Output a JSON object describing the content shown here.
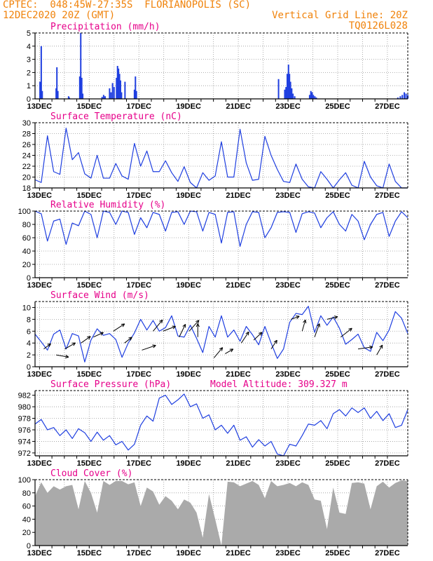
{
  "header": {
    "line1_left": "CPTEC:  048:45W-27:35S  FLORIANOPOLIS (SC)",
    "line2_left": "12DEC2020 20Z (GMT)",
    "line2_right": "Vertical Grid Line: 20Z",
    "line3_right": "TQ0126L028"
  },
  "x_axis_labels": [
    "13DEC",
    "15DEC",
    "17DEC",
    "19DEC",
    "21DEC",
    "23DEC",
    "25DEC",
    "27DEC"
  ],
  "chart_data": [
    {
      "type": "bar",
      "title": "Precipitation (mm/h)",
      "ylim": [
        0,
        5
      ],
      "yticks": [
        0,
        1,
        2,
        3,
        4,
        5
      ],
      "color": "#1f3fe0",
      "x_unit": "days since 12DEC 20Z",
      "points": [
        [
          0.2,
          1.3
        ],
        [
          0.25,
          4.0
        ],
        [
          0.29,
          0.6
        ],
        [
          0.85,
          0.8
        ],
        [
          0.88,
          2.4
        ],
        [
          0.92,
          0.6
        ],
        [
          1.35,
          0.2
        ],
        [
          1.38,
          0.1
        ],
        [
          1.8,
          1.7
        ],
        [
          1.84,
          5.0
        ],
        [
          1.88,
          1.6
        ],
        [
          1.92,
          0.4
        ],
        [
          2.7,
          0.15
        ],
        [
          2.76,
          0.3
        ],
        [
          2.82,
          0.2
        ],
        [
          3.0,
          0.8
        ],
        [
          3.06,
          0.5
        ],
        [
          3.12,
          1.2
        ],
        [
          3.18,
          0.9
        ],
        [
          3.28,
          1.6
        ],
        [
          3.32,
          2.5
        ],
        [
          3.36,
          2.3
        ],
        [
          3.4,
          1.9
        ],
        [
          3.44,
          1.4
        ],
        [
          3.48,
          0.5
        ],
        [
          3.62,
          1.3
        ],
        [
          4.0,
          0.7
        ],
        [
          4.04,
          1.7
        ],
        [
          4.08,
          0.6
        ],
        [
          9.8,
          1.5
        ],
        [
          10.05,
          0.7
        ],
        [
          10.1,
          0.9
        ],
        [
          10.15,
          1.9
        ],
        [
          10.2,
          2.6
        ],
        [
          10.24,
          1.9
        ],
        [
          10.28,
          1.3
        ],
        [
          10.33,
          0.8
        ],
        [
          10.38,
          0.4
        ],
        [
          10.45,
          0.2
        ],
        [
          11.05,
          0.3
        ],
        [
          11.1,
          0.6
        ],
        [
          11.15,
          0.5
        ],
        [
          11.2,
          0.3
        ],
        [
          11.26,
          0.2
        ],
        [
          11.32,
          0.1
        ],
        [
          14.6,
          0.1
        ],
        [
          14.7,
          0.2
        ],
        [
          14.78,
          0.3
        ],
        [
          14.86,
          0.5
        ],
        [
          14.93,
          0.4
        ],
        [
          15.0,
          0.3
        ]
      ]
    },
    {
      "type": "line",
      "title": "Surface Temperature (nC)",
      "ylim": [
        18,
        30
      ],
      "yticks": [
        18,
        20,
        22,
        24,
        26,
        28,
        30
      ],
      "color": "#1f3fe0",
      "x": [
        0,
        0.25,
        0.5,
        0.75,
        1,
        1.25,
        1.5,
        1.75,
        2,
        2.25,
        2.5,
        2.75,
        3,
        3.25,
        3.5,
        3.75,
        4,
        4.25,
        4.5,
        4.75,
        5,
        5.25,
        5.5,
        5.75,
        6,
        6.25,
        6.5,
        6.75,
        7,
        7.25,
        7.5,
        7.75,
        8,
        8.25,
        8.5,
        8.75,
        9,
        9.25,
        9.5,
        9.75,
        10,
        10.25,
        10.5,
        10.75,
        11,
        11.25,
        11.5,
        11.75,
        12,
        12.25,
        12.5,
        12.75,
        13,
        13.25,
        13.5,
        13.75,
        14,
        14.25,
        14.5,
        14.75,
        15
      ],
      "values": [
        19.5,
        19.0,
        27.6,
        21.0,
        20.5,
        29.0,
        23.2,
        24.5,
        20.6,
        19.8,
        24.0,
        19.8,
        19.8,
        22.5,
        20.2,
        19.6,
        26.2,
        22.0,
        24.8,
        21.0,
        21.0,
        23.0,
        20.8,
        19.2,
        21.9,
        19.0,
        18.0,
        20.8,
        19.4,
        20.2,
        26.5,
        20.0,
        20.0,
        28.8,
        22.6,
        19.4,
        19.6,
        27.5,
        24.0,
        21.4,
        19.2,
        19.0,
        22.4,
        19.6,
        18.2,
        18.0,
        21.0,
        19.6,
        18.0,
        19.5,
        20.8,
        18.5,
        18.0,
        22.9,
        20.0,
        18.4,
        18.0,
        22.4,
        19.2,
        18.0,
        18.0
      ]
    },
    {
      "type": "line",
      "title": "Relative Humidity (%)",
      "ylim": [
        0,
        100
      ],
      "yticks": [
        0,
        20,
        40,
        60,
        80,
        100
      ],
      "color": "#1f3fe0",
      "x": [
        0,
        0.25,
        0.5,
        0.75,
        1,
        1.25,
        1.5,
        1.75,
        2,
        2.25,
        2.5,
        2.75,
        3,
        3.25,
        3.5,
        3.75,
        4,
        4.25,
        4.5,
        4.75,
        5,
        5.25,
        5.5,
        5.75,
        6,
        6.25,
        6.5,
        6.75,
        7,
        7.25,
        7.5,
        7.75,
        8,
        8.25,
        8.5,
        8.75,
        9,
        9.25,
        9.5,
        9.75,
        10,
        10.25,
        10.5,
        10.75,
        11,
        11.25,
        11.5,
        11.75,
        12,
        12.25,
        12.5,
        12.75,
        13,
        13.25,
        13.5,
        13.75,
        14,
        14.25,
        14.5,
        14.75,
        15
      ],
      "values": [
        100,
        96,
        55,
        85,
        88,
        50,
        82,
        78,
        100,
        95,
        60,
        100,
        98,
        80,
        100,
        98,
        65,
        90,
        75,
        98,
        95,
        70,
        98,
        99,
        80,
        100,
        99,
        70,
        98,
        95,
        52,
        98,
        99,
        47,
        80,
        99,
        98,
        60,
        75,
        98,
        99,
        98,
        68,
        96,
        99,
        97,
        75,
        90,
        99,
        80,
        70,
        95,
        85,
        57,
        80,
        95,
        98,
        62,
        85,
        99,
        90
      ]
    },
    {
      "type": "line",
      "title": "Surface Wind (m/s)",
      "ylim": [
        0,
        11
      ],
      "yticks": [
        0,
        2,
        4,
        6,
        8,
        10
      ],
      "color": "#1f3fe0",
      "x": [
        0,
        0.25,
        0.5,
        0.75,
        1,
        1.25,
        1.5,
        1.75,
        2,
        2.25,
        2.5,
        2.75,
        3,
        3.25,
        3.5,
        3.75,
        4,
        4.25,
        4.5,
        4.75,
        5,
        5.25,
        5.5,
        5.75,
        6,
        6.25,
        6.5,
        6.75,
        7,
        7.25,
        7.5,
        7.75,
        8,
        8.25,
        8.5,
        8.75,
        9,
        9.25,
        9.5,
        9.75,
        10,
        10.25,
        10.5,
        10.75,
        11,
        11.25,
        11.5,
        11.75,
        12,
        12.25,
        12.5,
        12.75,
        13,
        13.25,
        13.5,
        13.75,
        14,
        14.25,
        14.5,
        14.75,
        15
      ],
      "values": [
        5.5,
        4.2,
        2.8,
        5.5,
        6.2,
        3.0,
        5.6,
        5.2,
        0.8,
        4.5,
        6.4,
        5.3,
        5.6,
        4.6,
        1.6,
        4.0,
        5.7,
        8.0,
        6.2,
        7.8,
        6.0,
        6.6,
        8.6,
        5.2,
        5.0,
        7.0,
        4.8,
        2.4,
        6.8,
        5.0,
        8.6,
        5.0,
        6.2,
        4.3,
        6.8,
        5.4,
        3.7,
        6.8,
        4.0,
        1.4,
        3.0,
        7.5,
        9.0,
        8.8,
        10.2,
        5.8,
        8.6,
        7.0,
        8.4,
        6.5,
        3.8,
        4.6,
        5.5,
        3.2,
        2.6,
        5.8,
        4.4,
        6.2,
        9.3,
        8.2,
        5.6
      ],
      "arrows": [
        [
          0.35,
          3.0,
          2,
          37
        ],
        [
          0.85,
          2.0,
          20,
          -10
        ],
        [
          1.2,
          3.0,
          18,
          30
        ],
        [
          1.85,
          4.0,
          15,
          35
        ],
        [
          2.35,
          5.0,
          12,
          25
        ],
        [
          3.15,
          6.0,
          24,
          33
        ],
        [
          3.6,
          4.0,
          5,
          38
        ],
        [
          4.3,
          2.8,
          40,
          19
        ],
        [
          4.75,
          6.0,
          32,
          50
        ],
        [
          5.15,
          6.0,
          24,
          21
        ],
        [
          5.8,
          5.0,
          28,
          64
        ],
        [
          6.2,
          6.0,
          40,
          48
        ],
        [
          6.55,
          5.0,
          24,
          90
        ],
        [
          7.2,
          1.5,
          24,
          50
        ],
        [
          7.65,
          2.2,
          4,
          30
        ],
        [
          8.3,
          4.0,
          24,
          56
        ],
        [
          8.8,
          4.5,
          14,
          43
        ],
        [
          9.5,
          3.0,
          10,
          56
        ],
        [
          10.3,
          8.0,
          2,
          20
        ],
        [
          10.75,
          6.0,
          16,
          74
        ],
        [
          11.25,
          5.0,
          28,
          70
        ],
        [
          11.75,
          8.0,
          12,
          14
        ],
        [
          12.3,
          5.0,
          28,
          38
        ],
        [
          13.0,
          3.0,
          34,
          8
        ],
        [
          13.75,
          2.0,
          14,
          60
        ]
      ]
    },
    {
      "type": "line",
      "title": "Surface Pressure (hPa)",
      "subtitle": "Model Altitude: 309.327 m",
      "ylim": [
        971.5,
        982.8
      ],
      "yticks": [
        972,
        974,
        976,
        978,
        980,
        982
      ],
      "color": "#1f3fe0",
      "x": [
        0,
        0.25,
        0.5,
        0.75,
        1,
        1.25,
        1.5,
        1.75,
        2,
        2.25,
        2.5,
        2.75,
        3,
        3.25,
        3.5,
        3.75,
        4,
        4.25,
        4.5,
        4.75,
        5,
        5.25,
        5.5,
        5.75,
        6,
        6.25,
        6.5,
        6.75,
        7,
        7.25,
        7.5,
        7.75,
        8,
        8.25,
        8.5,
        8.75,
        9,
        9.25,
        9.5,
        9.75,
        10,
        10.25,
        10.5,
        10.75,
        11,
        11.25,
        11.5,
        11.75,
        12,
        12.25,
        12.5,
        12.75,
        13,
        13.25,
        13.5,
        13.75,
        14,
        14.25,
        14.5,
        14.75,
        15
      ],
      "values": [
        977.0,
        977.8,
        976.0,
        976.4,
        975.0,
        976.0,
        974.5,
        976.2,
        975.5,
        974.0,
        975.6,
        974.2,
        975.0,
        973.4,
        974.0,
        972.5,
        973.5,
        976.8,
        978.4,
        977.5,
        981.5,
        982.0,
        980.4,
        981.2,
        982.2,
        980.0,
        980.5,
        978.0,
        978.6,
        976.0,
        976.8,
        975.4,
        976.8,
        974.2,
        974.8,
        973.0,
        974.3,
        973.2,
        974.0,
        971.8,
        971.0,
        973.5,
        973.2,
        975.0,
        977.0,
        976.8,
        977.6,
        976.2,
        978.8,
        979.5,
        978.4,
        979.8,
        979.0,
        979.8,
        978.0,
        979.2,
        977.6,
        978.8,
        976.4,
        976.8,
        979.5
      ]
    },
    {
      "type": "bar",
      "title": "Cloud Cover (%)",
      "ylim": [
        0,
        100
      ],
      "yticks": [
        0,
        20,
        40,
        60,
        80,
        100
      ],
      "color": "#aaaaaa",
      "x": [
        0,
        0.25,
        0.5,
        0.75,
        1,
        1.25,
        1.5,
        1.75,
        2,
        2.25,
        2.5,
        2.75,
        3,
        3.25,
        3.5,
        3.75,
        4,
        4.25,
        4.5,
        4.75,
        5,
        5.25,
        5.5,
        5.75,
        6,
        6.25,
        6.5,
        6.75,
        7,
        7.25,
        7.5,
        7.75,
        8,
        8.25,
        8.5,
        8.75,
        9,
        9.25,
        9.5,
        9.75,
        10,
        10.25,
        10.5,
        10.75,
        11,
        11.25,
        11.5,
        11.75,
        12,
        12.25,
        12.5,
        12.75,
        13,
        13.25,
        13.5,
        13.75,
        14,
        14.25,
        14.5,
        14.75,
        15
      ],
      "values": [
        75,
        96,
        80,
        90,
        85,
        90,
        92,
        55,
        98,
        80,
        50,
        98,
        92,
        98,
        98,
        93,
        96,
        60,
        88,
        82,
        62,
        75,
        68,
        55,
        70,
        65,
        50,
        12,
        78,
        40,
        0,
        97,
        96,
        90,
        94,
        98,
        92,
        72,
        98,
        90,
        92,
        95,
        90,
        96,
        92,
        70,
        68,
        25,
        88,
        50,
        48,
        95,
        96,
        94,
        55,
        90,
        97,
        88,
        95,
        99,
        98
      ]
    }
  ]
}
